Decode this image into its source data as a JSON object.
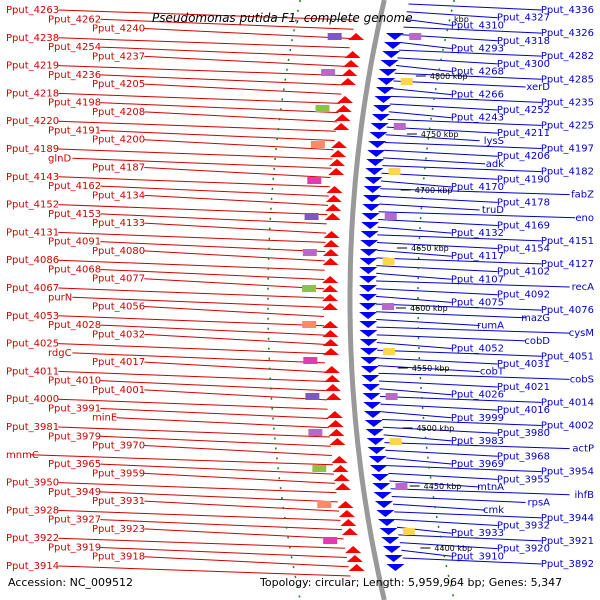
{
  "title": "Pseudomonas putida F1, complete genome",
  "title_unit": "kbp",
  "accession": "Accession: NC_009512",
  "summary": "Topology: circular; Length: 5,959,964 bp; Genes: 5,347",
  "colors": {
    "left_label": "#d00000",
    "right_label": "#0000cc",
    "forward": "#ff0000",
    "reverse": "#0000ff",
    "backbone": "#999999",
    "tick": "#1a7a1a"
  },
  "kbp_marks": [
    {
      "label": "4800 kbp"
    },
    {
      "label": "4750 kbp"
    },
    {
      "label": "4700 kbp"
    },
    {
      "label": "4650 kbp"
    },
    {
      "label": "4600 kbp"
    },
    {
      "label": "4550 kbp"
    },
    {
      "label": "4500 kbp"
    },
    {
      "label": "4450 kbp"
    },
    {
      "label": "4400 kbp"
    }
  ],
  "left_labels": [
    "Pput_4263",
    "Pput_4262",
    "Pput_4240",
    "Pput_4238",
    "Pput_4254",
    "Pput_4237",
    "Pput_4219",
    "Pput_4236",
    "Pput_4205",
    "Pput_4218",
    "Pput_4198",
    "Pput_4208",
    "Pput_4220",
    "Pput_4191",
    "Pput_4200",
    "Pput_4189",
    "glnD",
    "Pput_4187",
    "Pput_4143",
    "Pput_4162",
    "Pput_4134",
    "Pput_4152",
    "Pput_4153",
    "Pput_4133",
    "Pput_4131",
    "Pput_4091",
    "Pput_4080",
    "Pput_4086",
    "Pput_4068",
    "Pput_4077",
    "Pput_4067",
    "purN",
    "Pput_4056",
    "Pput_4053",
    "Pput_4028",
    "Pput_4032",
    "Pput_4025",
    "rdgC",
    "Pput_4017",
    "Pput_4011",
    "Pput_4010",
    "Pput_4001",
    "Pput_4000",
    "Pput_3991",
    "minE",
    "Pput_3981",
    "Pput_3979",
    "Pput_3970",
    "mnmC",
    "Pput_3965",
    "Pput_3959",
    "Pput_3950",
    "Pput_3949",
    "Pput_3931",
    "Pput_3928",
    "Pput_3927",
    "Pput_3923",
    "Pput_3922",
    "Pput_3919",
    "Pput_3918",
    "Pput_3914"
  ],
  "right_labels": [
    "Pput_4336",
    "Pput_4327",
    "Pput_4310",
    "Pput_4326",
    "Pput_4318",
    "Pput_4293",
    "Pput_4282",
    "Pput_4300",
    "Pput_4268",
    "Pput_4285",
    "xerD",
    "Pput_4266",
    "Pput_4235",
    "Pput_4252",
    "Pput_4243",
    "Pput_4225",
    "Pput_4211",
    "lysS",
    "Pput_4197",
    "Pput_4206",
    "adk",
    "Pput_4182",
    "Pput_4190",
    "Pput_4170",
    "fabZ",
    "Pput_4178",
    "truD",
    "eno",
    "Pput_4169",
    "Pput_4132",
    "Pput_4151",
    "Pput_4154",
    "Pput_4117",
    "Pput_4127",
    "Pput_4102",
    "Pput_4107",
    "recA",
    "Pput_4092",
    "Pput_4075",
    "Pput_4076",
    "mazG",
    "rumA",
    "cysM",
    "cobD",
    "Pput_4052",
    "Pput_4051",
    "Pput_4031",
    "cobT",
    "cobS",
    "Pput_4021",
    "Pput_4026",
    "Pput_4014",
    "Pput_4016",
    "Pput_3999",
    "Pput_4002",
    "Pput_3980",
    "Pput_3983",
    "actP",
    "Pput_3968",
    "Pput_3969",
    "Pput_3954",
    "Pput_3955",
    "mtnA",
    "ihfB",
    "rpsA",
    "cmk",
    "Pput_3944",
    "Pput_3932",
    "Pput_3933",
    "Pput_3921",
    "Pput_3920",
    "Pput_3910",
    "Pput_3892"
  ]
}
